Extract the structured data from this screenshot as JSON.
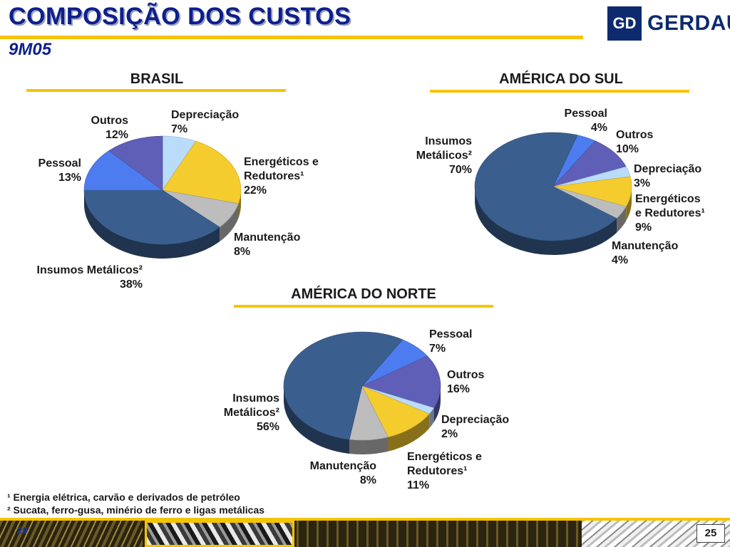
{
  "title": "COMPOSIÇÃO DOS CUSTOS",
  "subtitle": "9M05",
  "logo": {
    "mark": "GD",
    "name": "GERDAU"
  },
  "chart_data": [
    {
      "type": "pie",
      "title": "BRASIL",
      "slices": [
        {
          "key": "depreciacao",
          "label": "Depreciação",
          "value": 7,
          "color": "#b9dcfa"
        },
        {
          "key": "energeticos",
          "label": "Energéticos e Redutores¹",
          "value": 22,
          "color": "#f5cc2e"
        },
        {
          "key": "manutencao",
          "label": "Manutenção",
          "value": 8,
          "color": "#bdbdbd"
        },
        {
          "key": "insumos",
          "label": "Insumos Metálicos²",
          "value": 38,
          "color": "#3a5f8f"
        },
        {
          "key": "pessoal",
          "label": "Pessoal",
          "value": 13,
          "color": "#4d7cf0"
        },
        {
          "key": "outros",
          "label": "Outros",
          "value": 12,
          "color": "#5f5fb8"
        }
      ]
    },
    {
      "type": "pie",
      "title": "AMÉRICA DO SUL",
      "slices": [
        {
          "key": "pessoal",
          "label": "Pessoal",
          "value": 4,
          "color": "#4d7cf0"
        },
        {
          "key": "outros",
          "label": "Outros",
          "value": 10,
          "color": "#5f5fb8"
        },
        {
          "key": "depreciacao",
          "label": "Depreciação",
          "value": 3,
          "color": "#b9dcfa"
        },
        {
          "key": "energeticos",
          "label": "Energéticos e Redutores¹",
          "value": 9,
          "color": "#f5cc2e"
        },
        {
          "key": "manutencao",
          "label": "Manutenção",
          "value": 4,
          "color": "#bdbdbd"
        },
        {
          "key": "insumos",
          "label": "Insumos Metálicos²",
          "value": 70,
          "color": "#3a5f8f"
        }
      ]
    },
    {
      "type": "pie",
      "title": "AMÉRICA DO NORTE",
      "slices": [
        {
          "key": "pessoal",
          "label": "Pessoal",
          "value": 7,
          "color": "#4d7cf0"
        },
        {
          "key": "outros",
          "label": "Outros",
          "value": 16,
          "color": "#5f5fb8"
        },
        {
          "key": "depreciacao",
          "label": "Depreciação",
          "value": 2,
          "color": "#b9dcfa"
        },
        {
          "key": "energeticos",
          "label": "Energéticos e Redutores¹",
          "value": 11,
          "color": "#f5cc2e"
        },
        {
          "key": "manutencao",
          "label": "Manutenção",
          "value": 8,
          "color": "#bdbdbd"
        },
        {
          "key": "insumos",
          "label": "Insumos Metálicos²",
          "value": 56,
          "color": "#3a5f8f"
        }
      ]
    }
  ],
  "labels": {
    "br": {
      "outros": [
        "Outros",
        "12%"
      ],
      "depreciacao": [
        "Depreciação",
        "7%"
      ],
      "energeticos": [
        "Energéticos e",
        "Redutores¹",
        "22%"
      ],
      "pessoal": [
        "Pessoal",
        "13%"
      ],
      "manutencao": [
        "Manutenção",
        "8%"
      ],
      "insumos": [
        "Insumos Metálicos²",
        "38%"
      ]
    },
    "as": {
      "pessoal": [
        "Pessoal",
        "4%"
      ],
      "outros": [
        "Outros",
        "10%"
      ],
      "insumos": [
        "Insumos",
        "Metálicos²",
        "70%"
      ],
      "depreciacao": [
        "Depreciação",
        "3%"
      ],
      "energeticos": [
        "Energéticos",
        "e Redutores¹",
        "9%"
      ],
      "manutencao": [
        "Manutenção",
        "4%"
      ]
    },
    "an": {
      "pessoal": [
        "Pessoal",
        "7%"
      ],
      "outros": [
        "Outros",
        "16%"
      ],
      "insumos": [
        "Insumos",
        "Metálicos²",
        "56%"
      ],
      "depreciacao": [
        "Depreciação",
        "2%"
      ],
      "energeticos": [
        "Energéticos e",
        "Redutores¹",
        "11%"
      ],
      "manutencao": [
        "Manutenção",
        "8%"
      ]
    }
  },
  "footnotes": [
    "¹ Energia elétrica, carvão e derivados de petróleo",
    "² Sucata, ferro-gusa, minério de ferro e ligas metálicas"
  ],
  "footer": {
    "left_number": "29",
    "page_number": "25"
  }
}
